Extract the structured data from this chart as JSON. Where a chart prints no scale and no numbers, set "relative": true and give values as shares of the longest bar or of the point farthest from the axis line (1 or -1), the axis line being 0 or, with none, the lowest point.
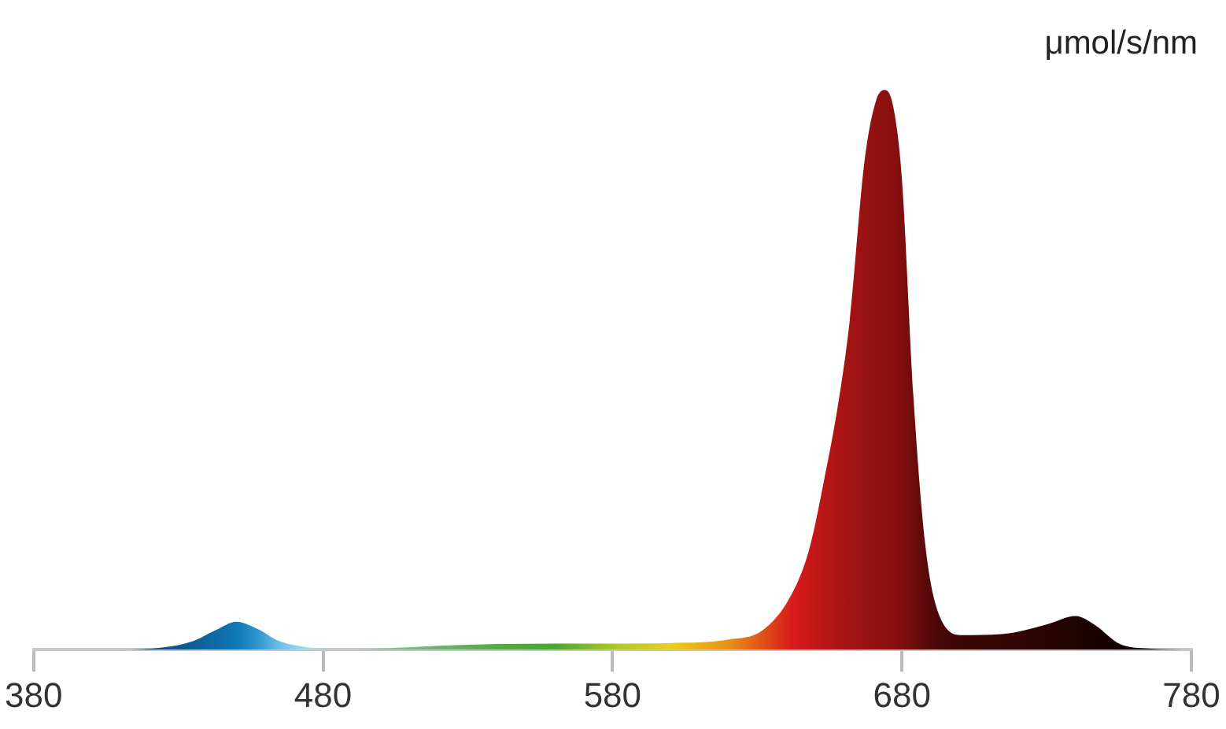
{
  "chart_data": {
    "type": "area",
    "ylabel": "μmol/s/nm",
    "relative": true,
    "marker": "none",
    "grid": false,
    "legend": false,
    "xlim": [
      380,
      780
    ],
    "xticks": [
      380,
      480,
      580,
      680,
      780
    ],
    "series": [
      {
        "x": [
          380,
          410,
          425,
          435,
          443,
          450,
          457,
          465,
          475,
          485,
          500,
          520,
          540,
          560,
          580,
          600,
          620,
          632,
          642,
          648,
          653,
          658,
          662,
          667,
          671,
          674,
          677,
          680,
          684,
          688,
          693,
          701,
          715,
          730,
          740,
          747,
          755,
          765,
          780
        ],
        "values": [
          0,
          0,
          0.004,
          0.015,
          0.035,
          0.05,
          0.038,
          0.015,
          0.004,
          0,
          0.002,
          0.007,
          0.01,
          0.011,
          0.011,
          0.012,
          0.018,
          0.035,
          0.1,
          0.18,
          0.3,
          0.44,
          0.59,
          0.87,
          0.98,
          1.0,
          0.97,
          0.84,
          0.45,
          0.19,
          0.06,
          0.026,
          0.028,
          0.045,
          0.06,
          0.043,
          0.011,
          0.002,
          0
        ],
        "colors": [
          "#1a3a6a",
          "#1a3a6a",
          "#134f86",
          "#0f5f97",
          "#0e6aa6",
          "#1078b4",
          "#2d93cc",
          "#6cc0e6",
          "#a8dcf2",
          "#a0c8c8",
          "#8cc0a0",
          "#70b070",
          "#55aa45",
          "#4aa535",
          "#a8c82a",
          "#e8d020",
          "#e89018",
          "#e05016",
          "#d81c1c",
          "#c81818",
          "#b81616",
          "#ab1414",
          "#a21313",
          "#981212",
          "#921111",
          "#8d1010",
          "#880f0f",
          "#800e0e",
          "#6e0c0c",
          "#5a0a0a",
          "#480808",
          "#3c0606",
          "#330505",
          "#2a0404",
          "#200303",
          "#180202",
          "#100101",
          "#0a0000",
          "#050000"
        ]
      }
    ]
  }
}
